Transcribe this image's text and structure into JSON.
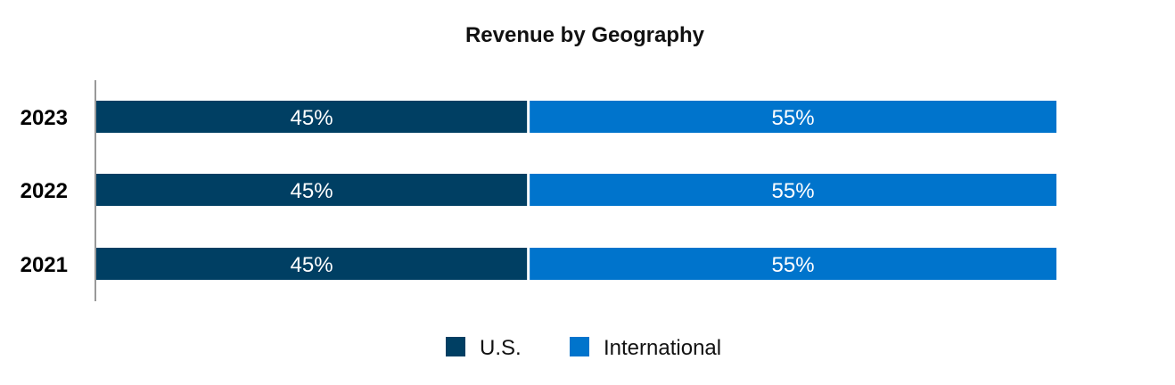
{
  "chart_data": {
    "type": "bar",
    "orientation": "horizontal",
    "stacked": true,
    "title": "Revenue by Geography",
    "xlabel": "",
    "ylabel": "",
    "xlim": [
      0,
      100
    ],
    "categories": [
      "2023",
      "2022",
      "2021"
    ],
    "series": [
      {
        "name": "U.S.",
        "color": "#003f63",
        "values": [
          45,
          45,
          45
        ],
        "labels": [
          "45%",
          "45%",
          "45%"
        ]
      },
      {
        "name": "International",
        "color": "#0074cc",
        "values": [
          55,
          55,
          55
        ],
        "labels": [
          "55%",
          "55%",
          "55%"
        ]
      }
    ],
    "grid": false,
    "legend_position": "bottom"
  }
}
